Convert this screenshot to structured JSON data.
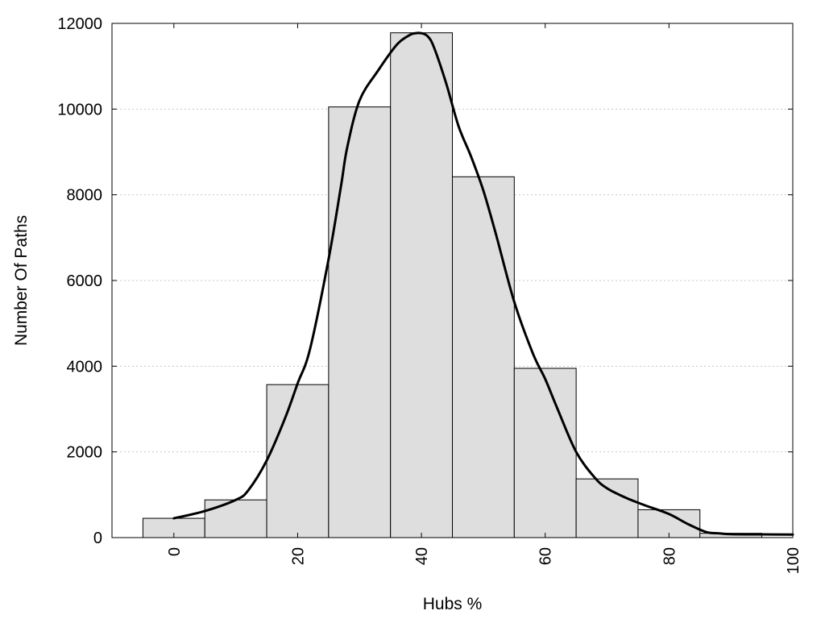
{
  "chart_data": {
    "type": "bar",
    "xlabel": "Hubs %",
    "ylabel": "Number Of Paths",
    "xlim": [
      -10,
      100
    ],
    "ylim": [
      0,
      12000
    ],
    "x_ticks": [
      0,
      20,
      40,
      60,
      80,
      100
    ],
    "x_tick_labels": [
      "0",
      "20",
      "40",
      "60",
      "80",
      "100"
    ],
    "y_ticks": [
      0,
      2000,
      4000,
      6000,
      8000,
      10000,
      12000
    ],
    "y_tick_labels": [
      "0",
      "2000",
      "4000",
      "6000",
      "8000",
      "10000",
      "12000"
    ],
    "grid": "horizontal dotted",
    "bin_width": 10,
    "bar_color": "#dedede",
    "categories": [
      0,
      10,
      20,
      30,
      40,
      50,
      60,
      70,
      80,
      90
    ],
    "values": [
      450,
      880,
      3570,
      10050,
      11780,
      8420,
      3950,
      1370,
      650,
      100
    ],
    "density_curve": {
      "x": [
        0,
        5,
        10,
        12,
        15,
        18,
        20,
        22,
        25,
        27,
        28,
        30,
        33,
        36,
        38,
        39,
        40,
        41,
        42,
        44,
        46,
        48,
        50,
        52,
        55,
        58,
        60,
        62,
        65,
        68,
        70,
        73,
        76,
        80,
        83,
        86,
        88,
        90,
        95,
        100
      ],
      "y": [
        450,
        620,
        880,
        1100,
        1800,
        2800,
        3600,
        4400,
        6500,
        8200,
        9100,
        10200,
        10900,
        11500,
        11720,
        11770,
        11770,
        11700,
        11450,
        10600,
        9600,
        8900,
        8100,
        7100,
        5500,
        4300,
        3700,
        3000,
        2000,
        1400,
        1150,
        930,
        760,
        550,
        320,
        130,
        100,
        80,
        75,
        70
      ]
    }
  }
}
